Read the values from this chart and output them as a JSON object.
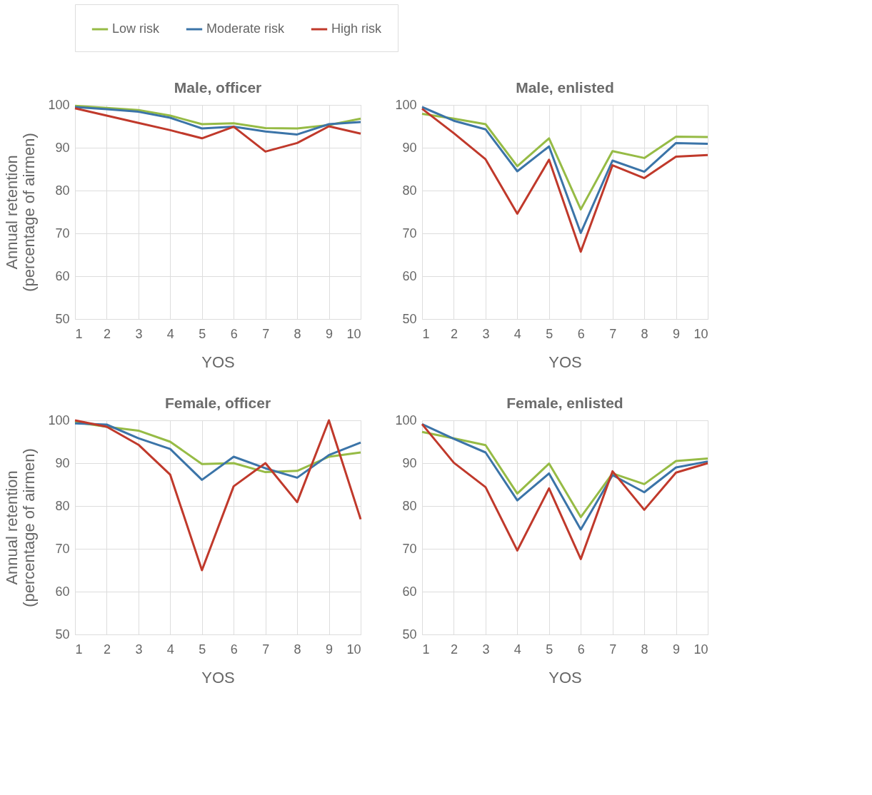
{
  "chart_data": [
    {
      "type": "line",
      "title": "Male, officer",
      "xlabel": "YOS",
      "ylabel": "Annual retention\n(percentage of airmen)",
      "x": [
        1,
        2,
        3,
        4,
        5,
        6,
        7,
        8,
        9,
        10
      ],
      "xlim": [
        1,
        10
      ],
      "xticks": [
        1,
        2,
        3,
        4,
        5,
        6,
        7,
        8,
        9,
        10
      ],
      "ylim": [
        50,
        100
      ],
      "yticks": [
        50,
        60,
        70,
        80,
        90,
        100
      ],
      "grid": true,
      "legend": "top",
      "marker": "none",
      "line_style": "solid",
      "series": [
        {
          "name": "Low risk",
          "color": "#96bb45",
          "values": [
            99.8,
            99.3,
            98.8,
            97.5,
            95.5,
            95.7,
            94.6,
            94.5,
            95.3,
            96.8
          ]
        },
        {
          "name": "Moderate risk",
          "color": "#3b74a8",
          "values": [
            99.5,
            99.0,
            98.4,
            97.0,
            94.5,
            94.9,
            93.8,
            93.1,
            95.5,
            96.0
          ]
        },
        {
          "name": "High risk",
          "color": "#c0392b",
          "values": [
            99.2,
            97.5,
            95.8,
            94.1,
            92.2,
            94.9,
            89.1,
            91.1,
            95.0,
            93.3
          ]
        }
      ]
    },
    {
      "type": "line",
      "title": "Male, enlisted",
      "xlabel": "YOS",
      "x": [
        1,
        2,
        3,
        4,
        5,
        6,
        7,
        8,
        9,
        10
      ],
      "xlim": [
        1,
        10
      ],
      "xticks": [
        1,
        2,
        3,
        4,
        5,
        6,
        7,
        8,
        9,
        10
      ],
      "ylim": [
        50,
        100
      ],
      "yticks": [
        50,
        60,
        70,
        80,
        90,
        100
      ],
      "grid": true,
      "legend": "top",
      "marker": "none",
      "line_style": "solid",
      "series": [
        {
          "name": "Low risk",
          "color": "#96bb45",
          "values": [
            97.9,
            96.8,
            95.5,
            85.7,
            92.2,
            75.6,
            89.2,
            87.6,
            92.6,
            92.5
          ]
        },
        {
          "name": "Moderate risk",
          "color": "#3b74a8",
          "values": [
            99.5,
            96.3,
            94.3,
            84.5,
            90.3,
            70.1,
            87.0,
            84.4,
            91.1,
            90.9
          ]
        },
        {
          "name": "High risk",
          "color": "#c0392b",
          "values": [
            99.1,
            93.4,
            87.3,
            74.6,
            87.2,
            65.7,
            85.9,
            82.9,
            87.9,
            88.3
          ]
        }
      ]
    },
    {
      "type": "line",
      "title": "Female, officer",
      "xlabel": "YOS",
      "ylabel": "Annual retention\n(percentage of airmen)",
      "x": [
        1,
        2,
        3,
        4,
        5,
        6,
        7,
        8,
        9,
        10
      ],
      "xlim": [
        1,
        10
      ],
      "xticks": [
        1,
        2,
        3,
        4,
        5,
        6,
        7,
        8,
        9,
        10
      ],
      "ylim": [
        50,
        100
      ],
      "yticks": [
        50,
        60,
        70,
        80,
        90,
        100
      ],
      "grid": true,
      "legend": "top",
      "marker": "none",
      "line_style": "solid",
      "series": [
        {
          "name": "Low risk",
          "color": "#96bb45",
          "values": [
            99.6,
            98.5,
            97.6,
            95.0,
            89.8,
            90.0,
            87.9,
            88.2,
            91.5,
            92.5
          ]
        },
        {
          "name": "Moderate risk",
          "color": "#3b74a8",
          "values": [
            99.3,
            99.0,
            95.8,
            93.3,
            86.1,
            91.5,
            88.8,
            86.6,
            91.9,
            94.8
          ]
        },
        {
          "name": "High risk",
          "color": "#c0392b",
          "values": [
            100,
            98.5,
            94.3,
            87.3,
            65.0,
            84.6,
            90.0,
            80.9,
            100,
            76.9
          ]
        }
      ]
    },
    {
      "type": "line",
      "title": "Female, enlisted",
      "xlabel": "YOS",
      "x": [
        1,
        2,
        3,
        4,
        5,
        6,
        7,
        8,
        9,
        10
      ],
      "xlim": [
        1,
        10
      ],
      "xticks": [
        1,
        2,
        3,
        4,
        5,
        6,
        7,
        8,
        9,
        10
      ],
      "ylim": [
        50,
        100
      ],
      "yticks": [
        50,
        60,
        70,
        80,
        90,
        100
      ],
      "grid": true,
      "legend": "top",
      "marker": "none",
      "line_style": "solid",
      "series": [
        {
          "name": "Low risk",
          "color": "#96bb45",
          "values": [
            97.3,
            95.8,
            94.2,
            82.9,
            89.9,
            77.4,
            87.6,
            85.1,
            90.5,
            91.1
          ]
        },
        {
          "name": "Moderate risk",
          "color": "#3b74a8",
          "values": [
            99.1,
            95.7,
            92.5,
            81.3,
            87.6,
            74.5,
            87.2,
            83.2,
            89.0,
            90.4
          ]
        },
        {
          "name": "High risk",
          "color": "#c0392b",
          "values": [
            99.1,
            90.1,
            84.4,
            69.6,
            84.1,
            67.6,
            88.1,
            79.1,
            87.8,
            90.0
          ]
        }
      ]
    }
  ]
}
